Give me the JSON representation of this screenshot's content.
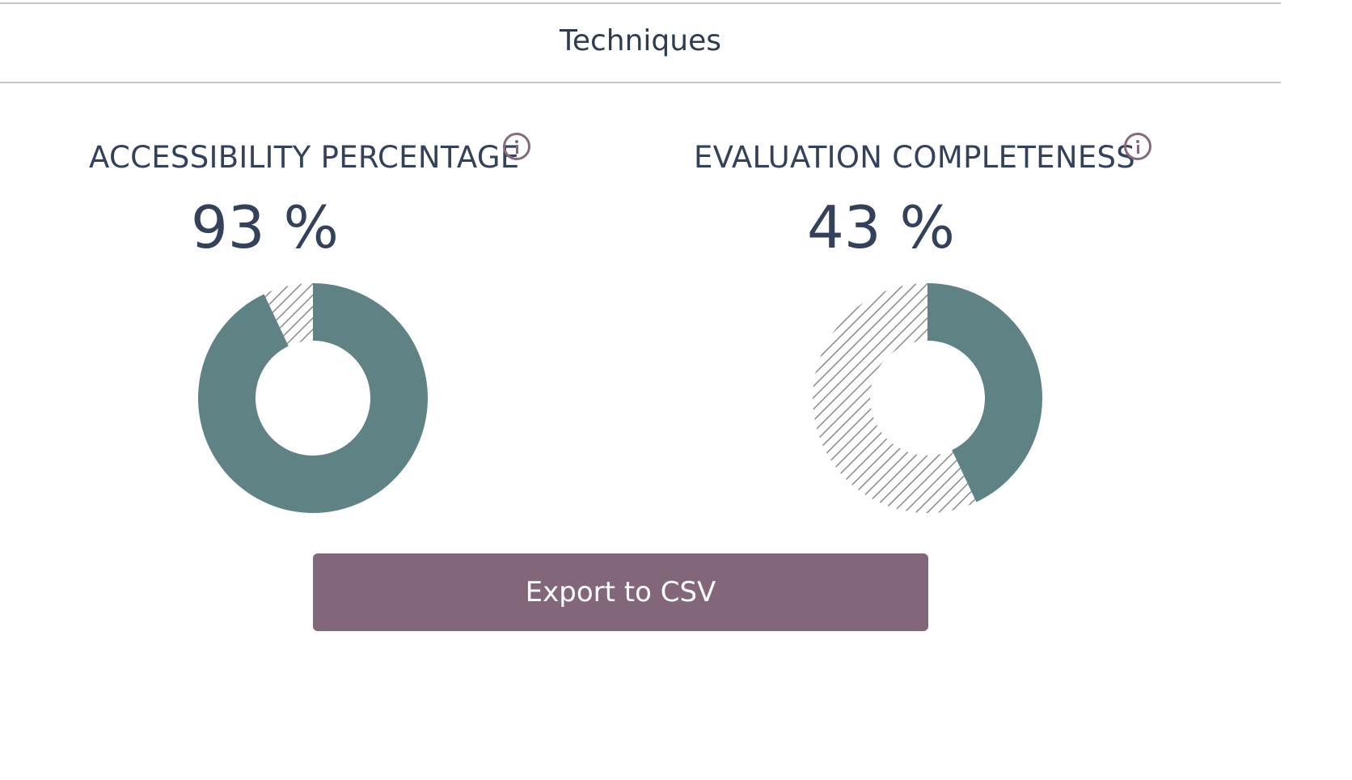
{
  "tab": {
    "title": "Techniques"
  },
  "metrics": [
    {
      "label": "ACCESSIBILITY PERCENTAGE",
      "value_text": "93 %",
      "percent": 93,
      "info_icon": "info-circle-icon"
    },
    {
      "label": "EVALUATION COMPLETENESS",
      "value_text": "43 %",
      "percent": 43,
      "info_icon": "info-circle-icon"
    }
  ],
  "actions": {
    "export_label": "Export to CSV"
  },
  "colors": {
    "filled": "#5f8385",
    "remaining_hatch": "#8a8a8a",
    "button": "#816779",
    "info": "#856a7d",
    "text": "#33415a"
  },
  "chart_data": [
    {
      "type": "pie",
      "categories": [
        "filled",
        "remaining"
      ],
      "values": [
        93,
        7
      ]
    },
    {
      "type": "pie",
      "categories": [
        "filled",
        "remaining"
      ],
      "values": [
        43,
        57
      ]
    }
  ]
}
